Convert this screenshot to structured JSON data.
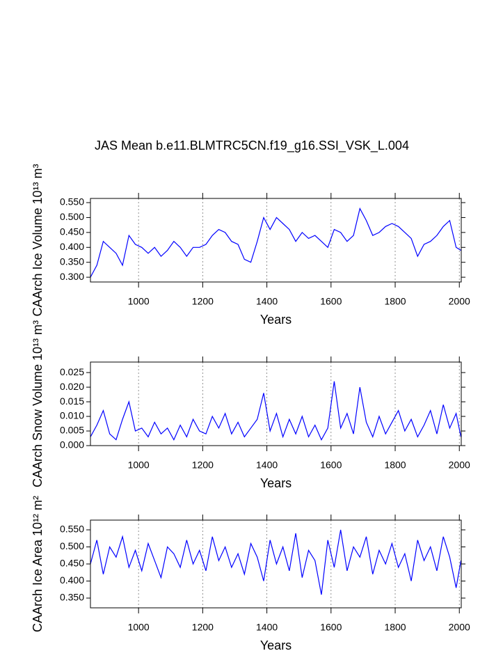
{
  "chart_data": [
    {
      "type": "line",
      "title": "JAS Mean b.e11.BLMTRC5CN.f19_g16.SSI_VSK_L.004",
      "xlabel": "Years",
      "ylabel": "CAArch Ice Volume 10¹³ m³",
      "color": "#0000ff",
      "grid": "x",
      "x": [
        850,
        870,
        890,
        910,
        930,
        950,
        970,
        990,
        1010,
        1030,
        1050,
        1070,
        1090,
        1110,
        1130,
        1150,
        1170,
        1190,
        1210,
        1230,
        1250,
        1270,
        1290,
        1310,
        1330,
        1350,
        1370,
        1390,
        1410,
        1430,
        1450,
        1470,
        1490,
        1510,
        1530,
        1550,
        1570,
        1590,
        1610,
        1630,
        1650,
        1670,
        1690,
        1710,
        1730,
        1750,
        1770,
        1790,
        1810,
        1830,
        1850,
        1870,
        1890,
        1910,
        1930,
        1950,
        1970,
        1990,
        2005
      ],
      "values": [
        0.3,
        0.34,
        0.42,
        0.4,
        0.38,
        0.34,
        0.44,
        0.41,
        0.4,
        0.38,
        0.4,
        0.37,
        0.39,
        0.42,
        0.4,
        0.37,
        0.4,
        0.4,
        0.41,
        0.44,
        0.46,
        0.45,
        0.42,
        0.41,
        0.36,
        0.35,
        0.42,
        0.5,
        0.46,
        0.5,
        0.48,
        0.46,
        0.42,
        0.45,
        0.43,
        0.44,
        0.42,
        0.4,
        0.46,
        0.45,
        0.42,
        0.44,
        0.53,
        0.49,
        0.44,
        0.45,
        0.47,
        0.48,
        0.47,
        0.45,
        0.43,
        0.37,
        0.41,
        0.42,
        0.44,
        0.47,
        0.49,
        0.4,
        0.39
      ],
      "xlim": [
        850,
        2006
      ],
      "ylim": [
        0.284,
        0.564
      ],
      "xticks": [
        1000,
        1200,
        1400,
        1600,
        1800,
        2000
      ],
      "yticks": [
        {
          "value": 0.3,
          "label": "0.300"
        },
        {
          "value": 0.35,
          "label": "0.350"
        },
        {
          "value": 0.4,
          "label": "0.400"
        },
        {
          "value": 0.45,
          "label": "0.450"
        },
        {
          "value": 0.5,
          "label": "0.500"
        },
        {
          "value": 0.55,
          "label": "0.550"
        }
      ]
    },
    {
      "type": "line",
      "xlabel": "Years",
      "ylabel": "CAArch Snow Volume 10¹³ m³",
      "color": "#0000ff",
      "grid": "x",
      "x": [
        850,
        870,
        890,
        910,
        930,
        950,
        970,
        990,
        1010,
        1030,
        1050,
        1070,
        1090,
        1110,
        1130,
        1150,
        1170,
        1190,
        1210,
        1230,
        1250,
        1270,
        1290,
        1310,
        1330,
        1350,
        1370,
        1390,
        1410,
        1430,
        1450,
        1470,
        1490,
        1510,
        1530,
        1550,
        1570,
        1590,
        1610,
        1630,
        1650,
        1670,
        1690,
        1710,
        1730,
        1750,
        1770,
        1790,
        1810,
        1830,
        1850,
        1870,
        1890,
        1910,
        1930,
        1950,
        1970,
        1990,
        2005
      ],
      "values": [
        0.003,
        0.007,
        0.012,
        0.004,
        0.002,
        0.009,
        0.015,
        0.005,
        0.006,
        0.003,
        0.008,
        0.004,
        0.006,
        0.002,
        0.007,
        0.003,
        0.009,
        0.005,
        0.004,
        0.01,
        0.006,
        0.011,
        0.004,
        0.008,
        0.003,
        0.006,
        0.009,
        0.018,
        0.005,
        0.011,
        0.003,
        0.009,
        0.004,
        0.01,
        0.003,
        0.007,
        0.002,
        0.006,
        0.022,
        0.006,
        0.011,
        0.004,
        0.02,
        0.008,
        0.003,
        0.01,
        0.004,
        0.008,
        0.012,
        0.005,
        0.009,
        0.003,
        0.007,
        0.012,
        0.004,
        0.014,
        0.006,
        0.011,
        0.003
      ],
      "xlim": [
        850,
        2006
      ],
      "ylim": [
        0,
        0.0286
      ],
      "xticks": [
        1000,
        1200,
        1400,
        1600,
        1800,
        2000
      ],
      "yticks": [
        {
          "value": 0,
          "label": "0.000"
        },
        {
          "value": 0.005,
          "label": "0.005"
        },
        {
          "value": 0.01,
          "label": "0.010"
        },
        {
          "value": 0.015,
          "label": "0.015"
        },
        {
          "value": 0.02,
          "label": "0.020"
        },
        {
          "value": 0.025,
          "label": "0.025"
        }
      ]
    },
    {
      "type": "line",
      "xlabel": "Years",
      "ylabel": "CAArch Ice Area 10¹² m²",
      "color": "#0000ff",
      "grid": "x",
      "x": [
        850,
        870,
        890,
        910,
        930,
        950,
        970,
        990,
        1010,
        1030,
        1050,
        1070,
        1090,
        1110,
        1130,
        1150,
        1170,
        1190,
        1210,
        1230,
        1250,
        1270,
        1290,
        1310,
        1330,
        1350,
        1370,
        1390,
        1410,
        1430,
        1450,
        1470,
        1490,
        1510,
        1530,
        1550,
        1570,
        1590,
        1610,
        1630,
        1650,
        1670,
        1690,
        1710,
        1730,
        1750,
        1770,
        1790,
        1810,
        1830,
        1850,
        1870,
        1890,
        1910,
        1930,
        1950,
        1970,
        1990,
        2005
      ],
      "values": [
        0.45,
        0.52,
        0.42,
        0.5,
        0.47,
        0.53,
        0.44,
        0.49,
        0.43,
        0.51,
        0.46,
        0.41,
        0.5,
        0.48,
        0.44,
        0.52,
        0.45,
        0.49,
        0.43,
        0.53,
        0.46,
        0.5,
        0.44,
        0.48,
        0.42,
        0.51,
        0.47,
        0.4,
        0.52,
        0.45,
        0.5,
        0.43,
        0.54,
        0.41,
        0.49,
        0.46,
        0.36,
        0.52,
        0.44,
        0.55,
        0.43,
        0.5,
        0.47,
        0.53,
        0.42,
        0.49,
        0.45,
        0.51,
        0.44,
        0.48,
        0.4,
        0.52,
        0.46,
        0.5,
        0.43,
        0.53,
        0.47,
        0.38,
        0.46
      ],
      "xlim": [
        850,
        2006
      ],
      "ylim": [
        0.3214,
        0.5786
      ],
      "xticks": [
        1000,
        1200,
        1400,
        1600,
        1800,
        2000
      ],
      "yticks": [
        {
          "value": 0.35,
          "label": "0.350"
        },
        {
          "value": 0.4,
          "label": "0.400"
        },
        {
          "value": 0.45,
          "label": "0.450"
        },
        {
          "value": 0.5,
          "label": "0.500"
        },
        {
          "value": 0.55,
          "label": "0.550"
        }
      ]
    }
  ]
}
